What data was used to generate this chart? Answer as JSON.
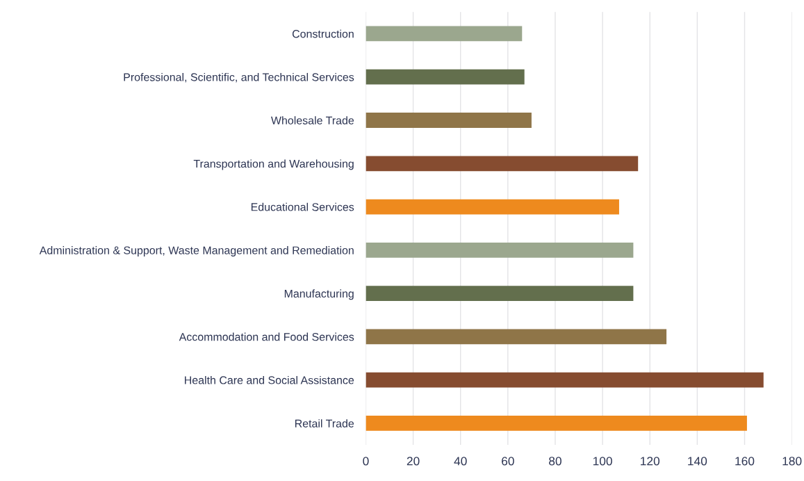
{
  "chart_data": {
    "type": "bar",
    "orientation": "horizontal",
    "categories": [
      "Construction",
      "Professional, Scientific, and Technical Services",
      "Wholesale Trade",
      "Transportation and Warehousing",
      "Educational Services",
      "Administration & Support, Waste Management and Remediation",
      "Manufacturing",
      "Accommodation and Food Services",
      "Health Care and Social Assistance",
      "Retail Trade"
    ],
    "values": [
      66,
      67,
      70,
      115,
      107,
      113,
      113,
      127,
      168,
      161
    ],
    "colors": [
      "#9ba78e",
      "#636f4d",
      "#8f7548",
      "#864c30",
      "#ee8a1e",
      "#9ba78e",
      "#636f4d",
      "#8f7548",
      "#864c30",
      "#ee8a1e"
    ],
    "xlim": [
      0,
      180
    ],
    "xticks": [
      0,
      20,
      40,
      60,
      80,
      100,
      120,
      140,
      160,
      180
    ],
    "grid": "x"
  }
}
